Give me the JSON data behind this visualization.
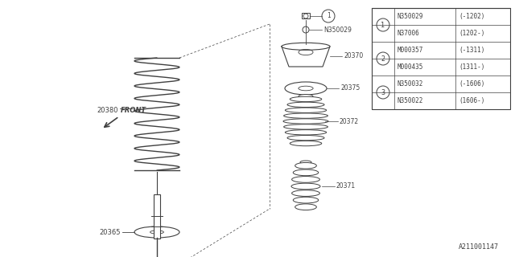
{
  "bg_color": "#ffffff",
  "line_color": "#404040",
  "footer": "A211001147",
  "table": {
    "rows": [
      {
        "circle": "1",
        "part1": "N350029",
        "range1": "(-1202)",
        "part2": "N37006",
        "range2": "(1202-)"
      },
      {
        "circle": "2",
        "part1": "M000357",
        "range1": "(-1311)",
        "part2": "M000435",
        "range2": "(1311-)"
      },
      {
        "circle": "3",
        "part1": "N350032",
        "range1": "(-1606)",
        "part2": "N350022",
        "range2": "(1606-)"
      }
    ]
  }
}
